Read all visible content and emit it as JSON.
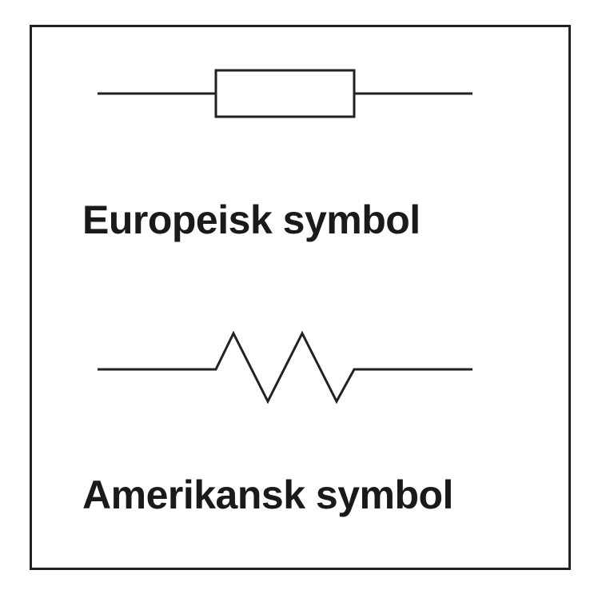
{
  "colors": {
    "stroke": "#222222",
    "text": "#1a1a1a",
    "background": "#ffffff"
  },
  "symbols": {
    "european": {
      "label": "Europeisk symbol",
      "icon": "resistor-iec-rectangle-icon"
    },
    "american": {
      "label": "Amerikansk symbol",
      "icon": "resistor-ansi-zigzag-icon"
    }
  }
}
